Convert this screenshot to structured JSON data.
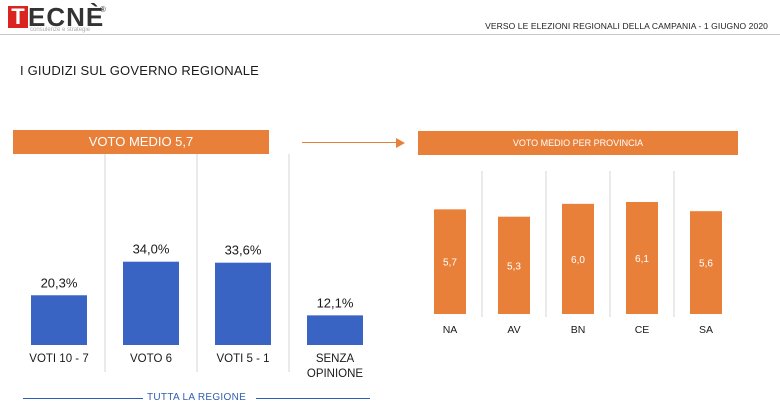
{
  "header": {
    "logo_letter": "T",
    "logo_word": "ECNÈ",
    "logo_reg": "®",
    "logo_tagline": "consulenze e strategie",
    "subtitle": "VERSO LE ELEZIONI REGIONALI DELLA CAMPANIA - 1 GIUGNO 2020"
  },
  "page_title": "I GIUDIZI SUL GOVERNO REGIONALE",
  "colors": {
    "blue": "#3a64c3",
    "orange": "#e8803a",
    "divider": "#d6d6d6"
  },
  "chart_data": [
    {
      "type": "bar",
      "title": "VOTO MEDIO 5,7",
      "categories": [
        "VOTI 10 - 7",
        "VOTO 6",
        "VOTI 5 - 1",
        "SENZA OPINIONE"
      ],
      "values": [
        20.3,
        34.0,
        33.6,
        12.1
      ],
      "labels": [
        "20,3%",
        "34,0%",
        "33,6%",
        "12,1%"
      ],
      "footer": "TUTTA LA REGIONE",
      "grid": false,
      "legend": "none"
    },
    {
      "type": "bar",
      "title": "VOTO MEDIO PER PROVINCIA",
      "categories": [
        "NA",
        "AV",
        "BN",
        "CE",
        "SA"
      ],
      "values": [
        5.7,
        5.3,
        6.0,
        6.1,
        5.6
      ],
      "labels": [
        "5,7",
        "5,3",
        "6,0",
        "6,1",
        "5,6"
      ],
      "grid": false,
      "legend": "none"
    }
  ]
}
